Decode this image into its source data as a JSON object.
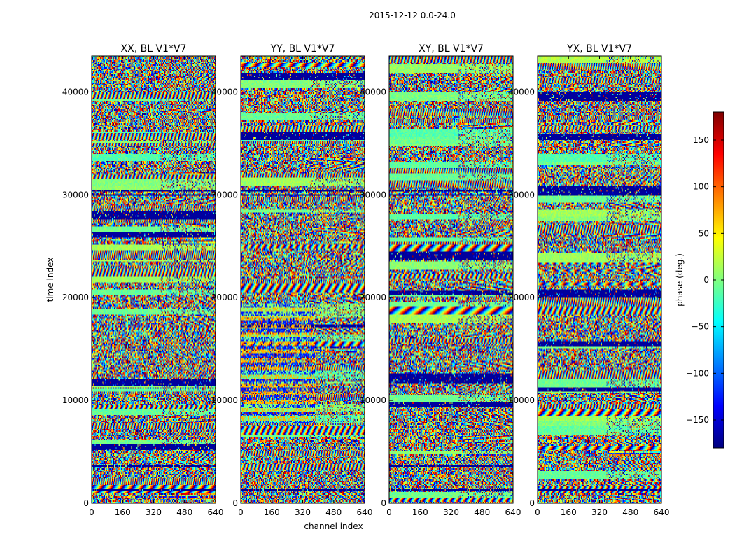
{
  "figure": {
    "suptitle": "2015-12-12 0.0-24.0"
  },
  "colorbar": {
    "label": "phase (deg.)",
    "colormap": "jet",
    "range": [
      -180,
      180
    ],
    "ticks": [
      150,
      100,
      50,
      0,
      -50,
      -100,
      -150
    ],
    "tick_labels": [
      "150",
      "100",
      "50",
      "0",
      "−50",
      "−100",
      "−150"
    ],
    "colormap_stops": [
      "#00007f",
      "#0000ff",
      "#007fff",
      "#00ffff",
      "#7fff7f",
      "#ffff00",
      "#ff7f00",
      "#ff0000",
      "#7f0000"
    ]
  },
  "chart_data": [
    {
      "type": "heatmap",
      "title": "XX, BL V1*V7",
      "xlabel": "",
      "ylabel": "time index",
      "xlim": [
        0,
        640
      ],
      "ylim": [
        0,
        43500
      ],
      "xticks": [
        0,
        160,
        320,
        480,
        640
      ],
      "yticks": [
        0,
        10000,
        20000,
        30000,
        40000
      ],
      "xtick_labels": [
        "0",
        "160",
        "320",
        "480",
        "640"
      ],
      "ytick_labels": [
        "0",
        "10000",
        "20000",
        "30000",
        "40000"
      ],
      "value_range": [
        -180,
        180
      ],
      "value_label": "phase (deg.)"
    },
    {
      "type": "heatmap",
      "title": "YY, BL V1*V7",
      "xlabel": "channel index",
      "ylabel": "",
      "xlim": [
        0,
        640
      ],
      "ylim": [
        0,
        43500
      ],
      "xticks": [
        0,
        160,
        320,
        480,
        640
      ],
      "yticks": [
        0,
        10000,
        20000,
        30000,
        40000
      ],
      "xtick_labels": [
        "0",
        "160",
        "320",
        "480",
        "640"
      ],
      "ytick_labels": [
        "0",
        "10000",
        "20000",
        "30000",
        "40000"
      ],
      "value_range": [
        -180,
        180
      ],
      "value_label": "phase (deg.)"
    },
    {
      "type": "heatmap",
      "title": "XY, BL V1*V7",
      "xlabel": "",
      "ylabel": "",
      "xlim": [
        0,
        640
      ],
      "ylim": [
        0,
        43500
      ],
      "xticks": [
        0,
        160,
        320,
        480,
        640
      ],
      "yticks": [
        0,
        10000,
        20000,
        30000,
        40000
      ],
      "xtick_labels": [
        "0",
        "160",
        "320",
        "480",
        "640"
      ],
      "ytick_labels": [
        "0",
        "10000",
        "20000",
        "30000",
        "40000"
      ],
      "value_range": [
        -180,
        180
      ],
      "value_label": "phase (deg.)"
    },
    {
      "type": "heatmap",
      "title": "YX, BL V1*V7",
      "xlabel": "",
      "ylabel": "",
      "xlim": [
        0,
        640
      ],
      "ylim": [
        0,
        43500
      ],
      "xticks": [
        0,
        160,
        320,
        480,
        640
      ],
      "yticks": [
        0,
        10000,
        20000,
        30000,
        40000
      ],
      "xtick_labels": [
        "0",
        "160",
        "320",
        "480",
        "640"
      ],
      "ytick_labels": [
        "0",
        "10000",
        "20000",
        "30000",
        "40000"
      ],
      "value_range": [
        -180,
        180
      ],
      "value_label": "phase (deg.)"
    }
  ]
}
